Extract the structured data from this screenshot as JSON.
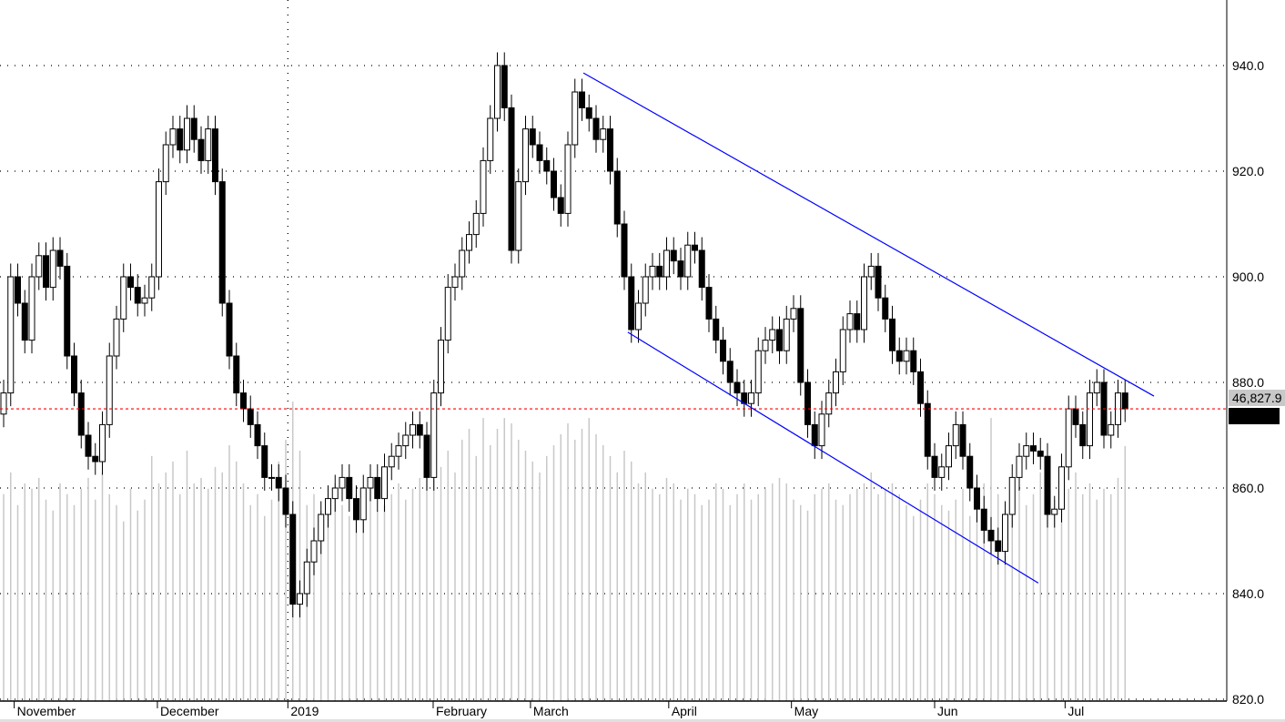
{
  "chart_data": {
    "type": "candlestick",
    "title": "",
    "ylim": [
      820,
      940
    ],
    "yticks": [
      820,
      840,
      860,
      880,
      900,
      920,
      940
    ],
    "ytick_labels": [
      "820.0",
      "840.0",
      "860.0",
      "880.0",
      "900.0",
      "920.0",
      "940.0"
    ],
    "grid": true,
    "months": [
      {
        "label": "November",
        "bar": 1.5
      },
      {
        "label": "December",
        "bar": 21.8
      },
      {
        "label": "2019",
        "bar": 40.3
      },
      {
        "label": "February",
        "bar": 60.9
      },
      {
        "label": "March",
        "bar": 74.7
      },
      {
        "label": "April",
        "bar": 94.3
      },
      {
        "label": "May",
        "bar": 111.7
      },
      {
        "label": "Jun",
        "bar": 132
      },
      {
        "label": "Jul",
        "bar": 150.5
      }
    ],
    "closes": [
      878,
      900,
      895,
      888,
      900,
      904,
      898,
      905,
      902,
      885,
      878,
      870,
      866,
      865,
      872,
      885,
      892,
      900,
      898,
      895,
      896,
      900,
      918,
      925,
      928,
      924,
      930,
      926,
      922,
      928,
      918,
      895,
      885,
      878,
      875,
      872,
      868,
      862,
      862,
      860,
      855,
      838,
      840,
      846,
      850,
      855,
      858,
      860,
      862,
      858,
      854,
      860,
      862,
      858,
      864,
      866,
      868,
      870,
      872,
      870,
      862,
      878,
      888,
      898,
      900,
      905,
      908,
      912,
      922,
      930,
      940,
      932,
      905,
      918,
      928,
      925,
      922,
      920,
      915,
      912,
      925,
      935,
      932,
      930,
      926,
      928,
      920,
      910,
      900,
      890,
      895,
      900,
      902,
      900,
      905,
      903,
      900,
      906,
      905,
      898,
      892,
      888,
      884,
      880,
      878,
      876,
      878,
      886,
      888,
      890,
      886,
      892,
      894,
      880,
      872,
      868,
      874,
      878,
      882,
      890,
      893,
      890,
      900,
      902,
      896,
      892,
      886,
      884,
      886,
      882,
      876,
      866,
      862,
      864,
      868,
      872,
      866,
      860,
      856,
      852,
      850,
      848,
      855,
      862,
      866,
      868,
      867,
      866,
      855,
      856,
      864,
      875,
      872,
      868,
      878,
      880,
      870,
      872,
      878,
      874.99
    ],
    "volume": [
      38000,
      42000,
      36000,
      40000,
      39000,
      41000,
      37000,
      35000,
      40000,
      38000,
      36000,
      39000,
      41000,
      37000,
      42000,
      38000,
      36000,
      33000,
      39000,
      35000,
      37000,
      45000,
      40000,
      42000,
      44000,
      38000,
      46000,
      40000,
      41000,
      39000,
      43000,
      42000,
      47000,
      44000,
      40000,
      36000,
      38000,
      34000,
      37000,
      44000,
      48000,
      55000,
      46000,
      36000,
      38000,
      35000,
      37000,
      40000,
      36000,
      34000,
      38000,
      37000,
      39000,
      35000,
      36000,
      38000,
      40000,
      37000,
      39000,
      41000,
      44000,
      48000,
      43000,
      46000,
      42000,
      48000,
      50000,
      45000,
      52000,
      47000,
      50000,
      52000,
      51000,
      48000,
      46000,
      44000,
      42000,
      45000,
      47000,
      49000,
      51000,
      48000,
      50000,
      52000,
      49000,
      47000,
      45000,
      42000,
      46000,
      44000,
      40000,
      42000,
      39000,
      38000,
      41000,
      40000,
      37000,
      39000,
      38000,
      36000,
      37000,
      40000,
      39000,
      36000,
      38000,
      40000,
      37000,
      38000,
      39000,
      40000,
      41000,
      40000,
      37000,
      36000,
      35000,
      38000,
      39000,
      40000,
      37000,
      36000,
      38000,
      39000,
      40000,
      42000,
      38000,
      39000,
      40000,
      38000,
      36000,
      34000,
      37000,
      40000,
      38000,
      36000,
      35000,
      37000,
      39000,
      34000,
      36000,
      40000,
      52000,
      38000,
      35000,
      37000,
      39000,
      36000,
      38000,
      42000,
      40000,
      37000,
      36000,
      39000,
      42000,
      38000,
      40000,
      37000,
      39000,
      38000,
      41000,
      46827.9
    ],
    "price_line": 874.99,
    "last_price_label": "874.99",
    "last_volume_label": "46,827.9",
    "trendlines": [
      {
        "from": {
          "bar": 82.2,
          "price": 938.6
        },
        "to": {
          "bar": 163.1,
          "price": 877.4
        },
        "color": "#0000ff"
      },
      {
        "from": {
          "bar": 88.5,
          "price": 889.5
        },
        "to": {
          "bar": 146.7,
          "price": 842
        },
        "color": "#0000ff"
      }
    ],
    "colors": {
      "up": "#ffffff",
      "down": "#000000",
      "volume": "#c8c8c8",
      "price_line": "#ff0000",
      "trendline": "#0000ff"
    }
  }
}
